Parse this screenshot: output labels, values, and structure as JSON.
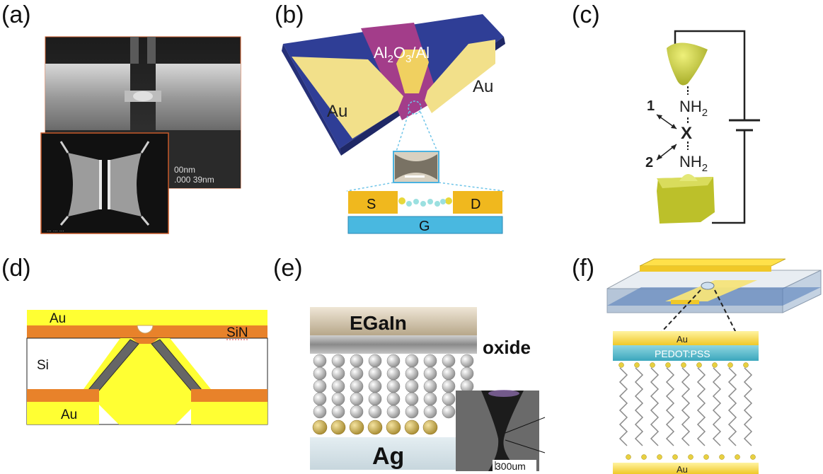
{
  "panels": {
    "a": {
      "label": "(a)",
      "sem_text_1": "00nm",
      "sem_text_2": ".000  39nm",
      "inset_text": "...  ...  ..."
    },
    "b": {
      "label": "(b)",
      "layer": "Al2O3/Al",
      "layer_pre": "Al",
      "layer_sub1": "2",
      "layer_mid": "O",
      "layer_sub2": "3",
      "layer_post": "/Al",
      "electrode_left": "Au",
      "electrode_right": "Au",
      "source": "S",
      "drain": "D",
      "gate": "G"
    },
    "c": {
      "label": "(c)",
      "group_top": "NH2",
      "group_top_main": "NH",
      "group_top_sub": "2",
      "molecule_center": "X",
      "group_bottom": "NH2",
      "group_bottom_main": "NH",
      "group_bottom_sub": "2",
      "arrow_1": "1",
      "arrow_2": "2"
    },
    "d": {
      "label": "(d)",
      "top_metal": "Au",
      "membrane": "SiN",
      "substrate": "Si",
      "bottom_metal": "Au"
    },
    "e": {
      "label": "(e)",
      "top_electrode": "EGaIn",
      "oxide_label": "oxide",
      "bottom_electrode": "Ag",
      "scale_bar": "300um"
    },
    "f": {
      "label": "(f)",
      "top_layer": "Au",
      "polymer": "PEDOT:PSS",
      "bottom_layer": "Au"
    }
  },
  "colors": {
    "gold": "#f2e08a",
    "bright_yellow": "#ffff33",
    "orange": "#e8822a",
    "blue_substrate": "#3a5aa8",
    "magenta_oxide": "#a33d8a",
    "cyan_gate": "#3ab6e0"
  }
}
